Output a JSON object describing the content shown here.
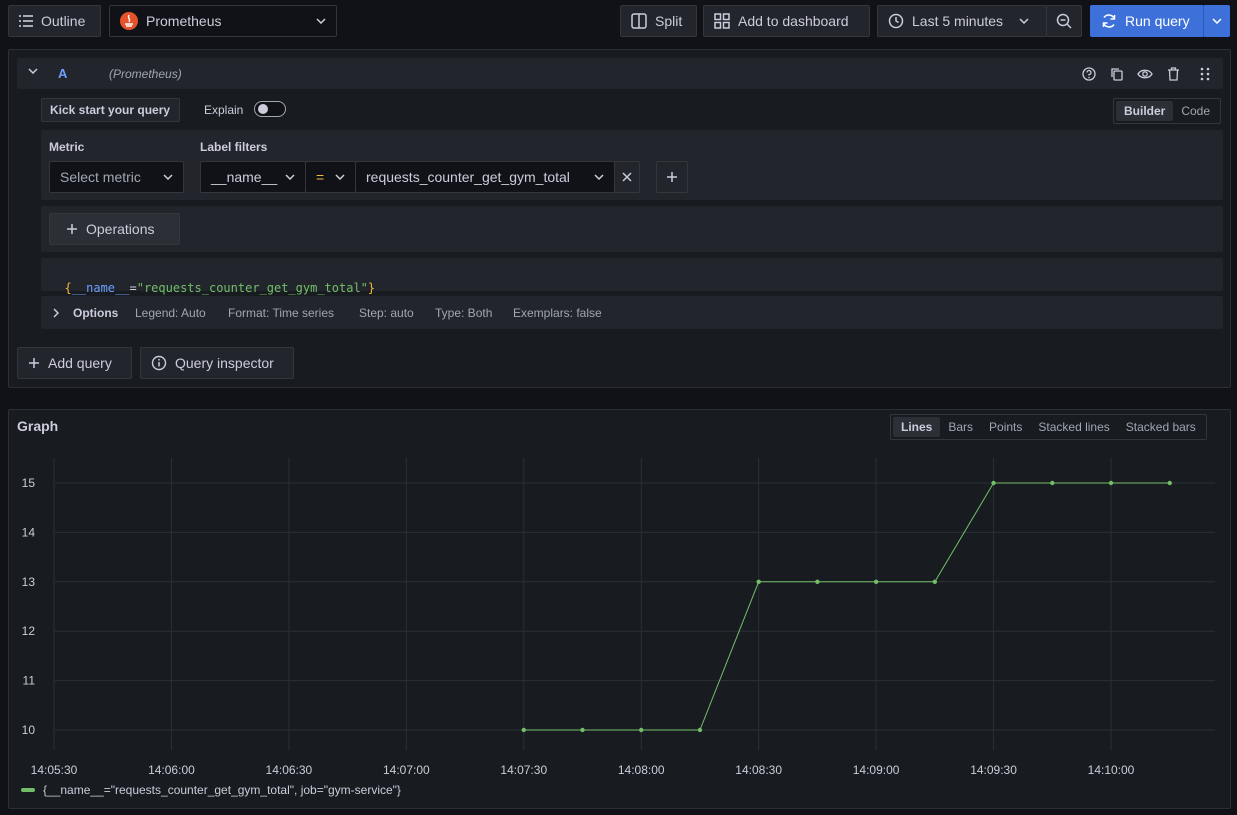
{
  "toolbar": {
    "outline_label": "Outline",
    "datasource_name": "Prometheus",
    "split_label": "Split",
    "add_to_dashboard_label": "Add to dashboard",
    "time_range_label": "Last 5 minutes",
    "run_query_label": "Run query"
  },
  "query": {
    "refid": "A",
    "datasource_note": "(Prometheus)",
    "kick_start_label": "Kick start your query",
    "explain_label": "Explain",
    "mode_options": [
      "Builder",
      "Code"
    ],
    "active_mode": "Builder",
    "metric_label": "Metric",
    "metric_placeholder": "Select metric",
    "label_filters_label": "Label filters",
    "filter_label_value": "__name__",
    "filter_operator": "=",
    "filter_value": "requests_counter_get_gym_total",
    "operations_label": "Operations",
    "promql": {
      "open": "{",
      "label": "__name__",
      "eq": "=",
      "value": "\"requests_counter_get_gym_total\"",
      "close": "}"
    },
    "options_label": "Options",
    "options_summary": {
      "legend": "Legend: Auto",
      "format": "Format: Time series",
      "step": "Step: auto",
      "type": "Type: Both",
      "exemplars": "Exemplars: false"
    }
  },
  "actions": {
    "add_query_label": "Add query",
    "query_inspector_label": "Query inspector"
  },
  "graph": {
    "title": "Graph",
    "view_options": [
      "Lines",
      "Bars",
      "Points",
      "Stacked lines",
      "Stacked bars"
    ],
    "active_view": "Lines",
    "legend_label": "{__name__=\"requests_counter_get_gym_total\", job=\"gym-service\"}",
    "series_color": "#73bf69"
  },
  "chart_data": {
    "type": "line",
    "x_ticks": [
      "14:05:30",
      "14:06:00",
      "14:06:30",
      "14:07:00",
      "14:07:30",
      "14:08:00",
      "14:08:30",
      "14:09:00",
      "14:09:30",
      "14:10:00"
    ],
    "y_ticks": [
      10,
      11,
      12,
      13,
      14,
      15
    ],
    "series": [
      {
        "name": "{__name__=\"requests_counter_get_gym_total\", job=\"gym-service\"}",
        "x": [
          "14:07:30",
          "14:07:45",
          "14:08:00",
          "14:08:15",
          "14:08:30",
          "14:08:45",
          "14:09:00",
          "14:09:15",
          "14:09:30",
          "14:09:45",
          "14:10:00",
          "14:10:15"
        ],
        "y": [
          10,
          10,
          10,
          10,
          13,
          13,
          13,
          13,
          15,
          15,
          15,
          15
        ]
      }
    ],
    "ylim": [
      9.5,
      15.5
    ],
    "grid": true,
    "legend_position": "bottom-left"
  },
  "colors": {
    "accent": "#3d71d9",
    "series": "#73bf69",
    "background": "#111217",
    "panel": "#181b1f"
  }
}
